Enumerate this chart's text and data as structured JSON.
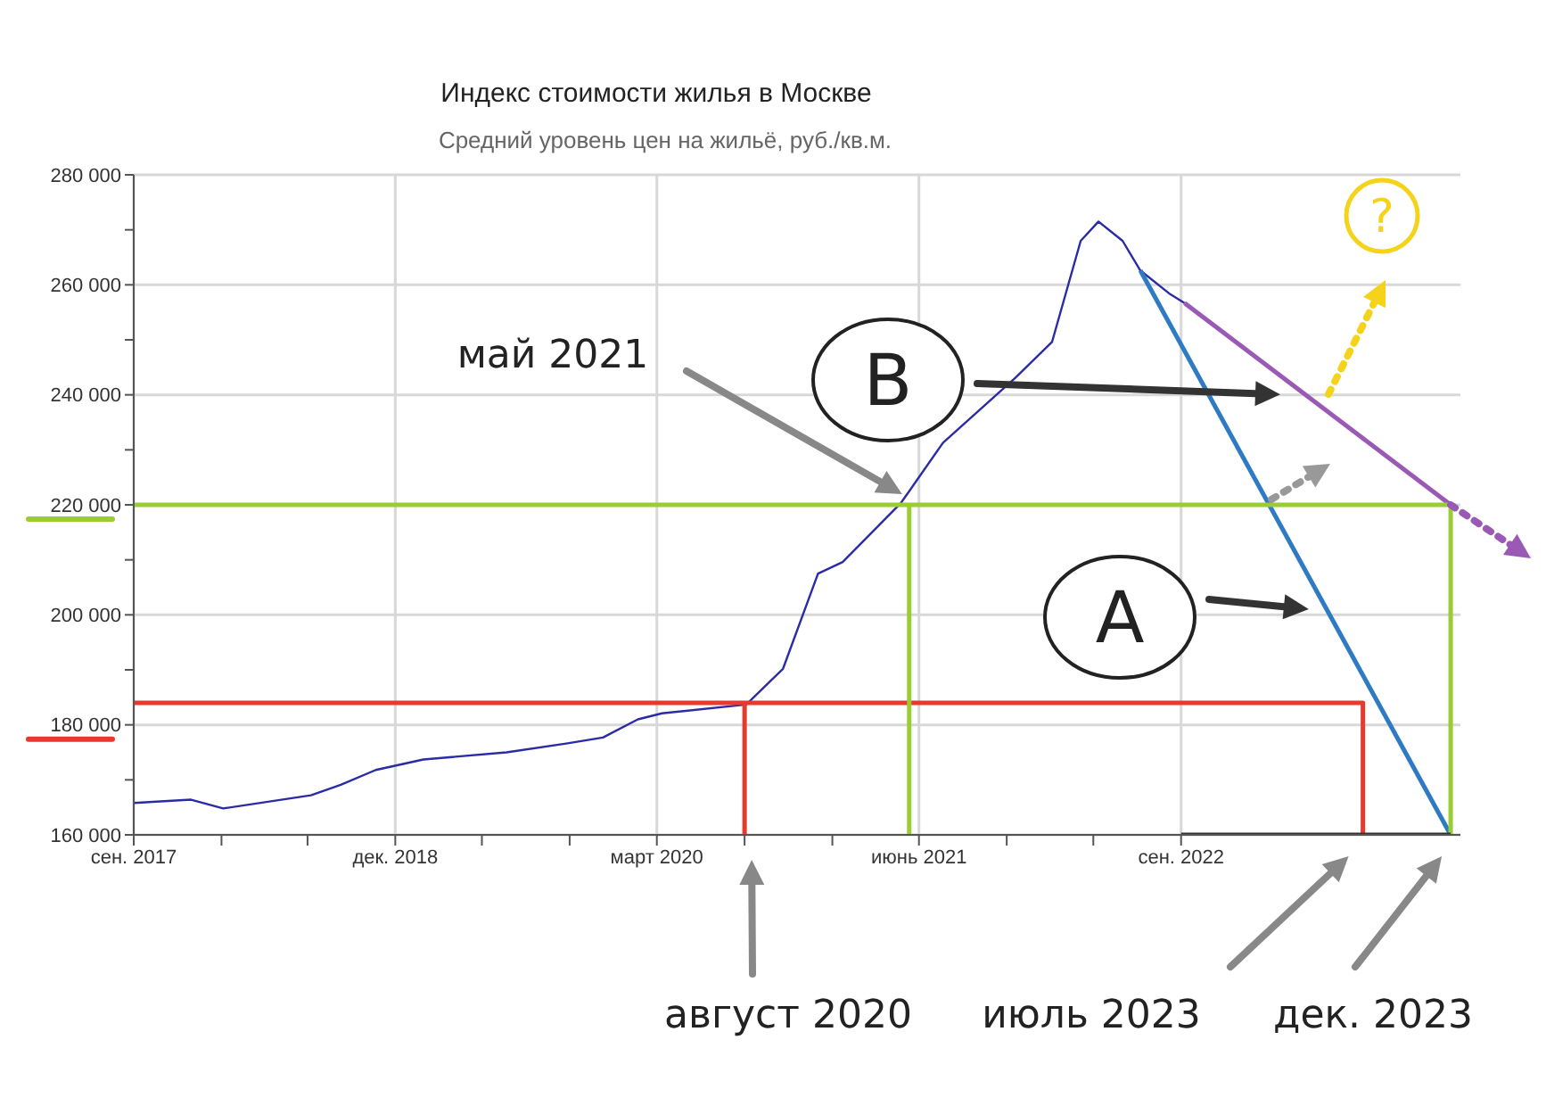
{
  "chart_data": {
    "type": "line",
    "title": "Индекс стоимости жилья в Москве",
    "subtitle": "Средний уровень цен на жильё, руб./кв.м.",
    "xlim": [
      "2017-09-01",
      "2024-01-01"
    ],
    "xticks": [
      {
        "value": "2017-09-01",
        "label": "сен. 2017"
      },
      {
        "value": "2018-02-01",
        "label": null
      },
      {
        "value": "2018-07-01",
        "label": null
      },
      {
        "value": "2018-12-01",
        "label": "дек. 2018"
      },
      {
        "value": "2019-05-01",
        "label": null
      },
      {
        "value": "2019-10-01",
        "label": null
      },
      {
        "value": "2020-03-01",
        "label": "март 2020"
      },
      {
        "value": "2020-08-01",
        "label": null
      },
      {
        "value": "2021-01-01",
        "label": null
      },
      {
        "value": "2021-06-01",
        "label": "июнь 2021"
      },
      {
        "value": "2021-11-01",
        "label": null
      },
      {
        "value": "2022-04-01",
        "label": null
      },
      {
        "value": "2022-09-01",
        "label": "сен. 2022"
      }
    ],
    "ylim": [
      160000,
      280000
    ],
    "yticks": [
      {
        "value": 160000,
        "label": "160 000"
      },
      {
        "value": 170000,
        "label": null
      },
      {
        "value": 180000,
        "label": "180 000"
      },
      {
        "value": 190000,
        "label": null
      },
      {
        "value": 200000,
        "label": "200 000"
      },
      {
        "value": 210000,
        "label": null
      },
      {
        "value": 220000,
        "label": "220 000"
      },
      {
        "value": 230000,
        "label": null
      },
      {
        "value": 240000,
        "label": "240 000"
      },
      {
        "value": 250000,
        "label": null
      },
      {
        "value": 260000,
        "label": "260 000"
      },
      {
        "value": 270000,
        "label": null
      },
      {
        "value": 280000,
        "label": "280 000"
      }
    ],
    "grid": true,
    "marker": "none",
    "line_style": "solid",
    "series": [
      {
        "color": "#2b2ba6",
        "x": [
          "2017-09-01",
          "2017-12-10",
          "2018-02-04",
          "2018-07-07",
          "2018-08-28",
          "2018-10-28",
          "2019-01-19",
          "2019-06-13",
          "2019-09-25",
          "2019-11-28",
          "2020-01-28",
          "2020-03-10",
          "2020-08-04",
          "2020-10-07",
          "2020-12-07",
          "2021-01-19",
          "2021-05-01",
          "2021-07-13",
          "2021-11-16",
          "2022-01-19",
          "2022-03-10",
          "2022-04-10",
          "2022-05-22",
          "2022-06-22",
          "2022-08-13",
          "2022-09-07"
        ],
        "values": [
          165800,
          166400,
          164800,
          167200,
          169100,
          171800,
          173700,
          175000,
          176600,
          177700,
          181000,
          182100,
          183700,
          190200,
          207500,
          209600,
          220400,
          231300,
          243100,
          249600,
          268000,
          271500,
          268000,
          262600,
          258300,
          256700
        ]
      },
      {
        "color": "#2e7bc4",
        "x": [
          "2022-06-22",
          "2023-12-15"
        ],
        "values": [
          262600,
          160000
        ]
      },
      {
        "color": "#9b59b6",
        "x": [
          "2022-09-07",
          "2023-12-15"
        ],
        "values": [
          256700,
          220000
        ]
      },
      {
        "color": "#e8392f",
        "x": [
          "2017-09-01",
          "2023-07-15",
          "2023-07-15"
        ],
        "values": [
          184000,
          184000,
          160000
        ]
      },
      {
        "color": "#e8392f",
        "x": [
          "2020-08-01",
          "2020-08-01"
        ],
        "values": [
          160000,
          184000
        ]
      },
      {
        "color": "#9acd32",
        "x": [
          "2017-09-01",
          "2023-12-15",
          "2023-12-15"
        ],
        "values": [
          220000,
          220000,
          160000
        ]
      },
      {
        "color": "#9acd32",
        "x": [
          "2021-05-15",
          "2021-05-15"
        ],
        "values": [
          160000,
          220000
        ]
      },
      {
        "color": "#333333",
        "x": [
          "2022-09-01",
          "2023-12-15"
        ],
        "values": [
          160000,
          160000
        ]
      }
    ],
    "annotations": [
      "май 2021",
      "август 2020",
      "июль 2023",
      "дек. 2023",
      "B",
      "A",
      "?"
    ]
  }
}
